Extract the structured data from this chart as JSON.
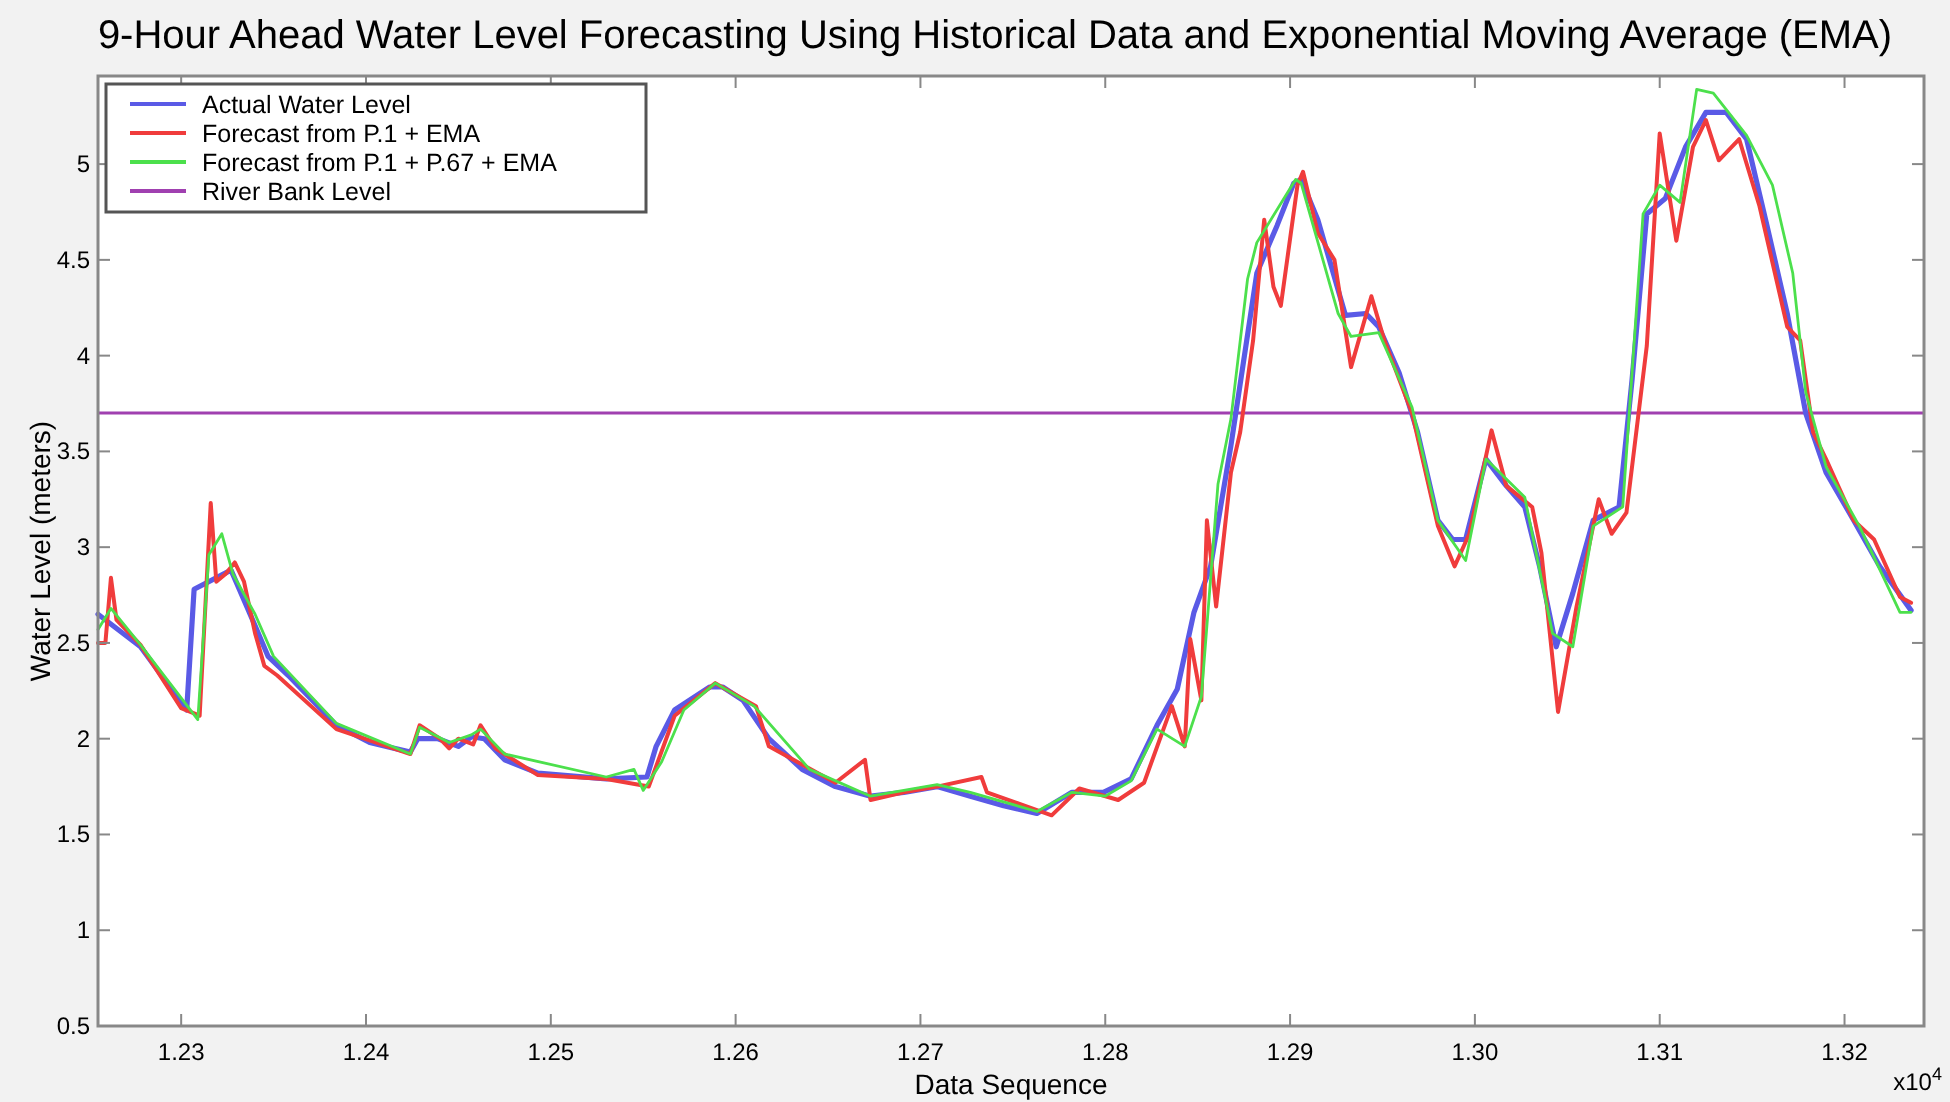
{
  "chart_data": {
    "type": "line",
    "title": "9-Hour Ahead Water Level Forecasting Using Historical Data and Exponential Moving Average (EMA)",
    "xlabel": "Data Sequence",
    "ylabel": "Water Level (meters)",
    "annotations": [
      "x10$^{4}$"
    ],
    "xlim": [
      1.2255,
      1.3243
    ],
    "ylim": [
      0.5,
      5.46
    ],
    "xticks": [
      1.23,
      1.24,
      1.25,
      1.26,
      1.27,
      1.28,
      1.29,
      {
        "value": 1.3,
        "label": "1.30"
      },
      1.31,
      1.32
    ],
    "yticks": [
      0.5,
      1,
      1.5,
      2,
      2.5,
      3,
      3.5,
      4,
      4.5,
      5
    ],
    "grid": false,
    "legend": "top left",
    "line_style": "solid",
    "marker": "none",
    "ref_lines": [
      {
        "axis": "y",
        "value": 3.7,
        "label": "River Bank Level",
        "color": "#a040b0"
      }
    ],
    "series": [
      {
        "name": "Actual Water Level",
        "color": "#5a5ae6",
        "x": [
          1.2255,
          1.2278,
          1.2303,
          1.2307,
          1.2327,
          1.234,
          1.2347,
          1.2358,
          1.2384,
          1.2402,
          1.2424,
          1.2428,
          1.2439,
          1.245,
          1.2457,
          1.2464,
          1.2475,
          1.2493,
          1.253,
          1.2552,
          1.2557,
          1.2567,
          1.2586,
          1.2593,
          1.2604,
          1.2618,
          1.2636,
          1.2654,
          1.2673,
          1.2691,
          1.2709,
          1.2727,
          1.2745,
          1.2763,
          1.2782,
          1.2799,
          1.2814,
          1.2828,
          1.2839,
          1.2848,
          1.2857,
          1.2868,
          1.2875,
          1.2882,
          1.2893,
          1.2902,
          1.2906,
          1.2915,
          1.293,
          1.2941,
          1.2948,
          1.2959,
          1.2969,
          1.298,
          1.2988,
          1.2995,
          1.3006,
          1.3017,
          1.3027,
          1.3035,
          1.3044,
          1.3053,
          1.3064,
          1.3078,
          1.3085,
          1.3093,
          1.3103,
          1.3114,
          1.3125,
          1.3136,
          1.3147,
          1.3158,
          1.3169,
          1.3179,
          1.319,
          1.3205,
          1.3219,
          1.3236
        ],
        "values": [
          2.65,
          2.48,
          2.15,
          2.78,
          2.88,
          2.59,
          2.43,
          2.33,
          2.07,
          1.98,
          1.93,
          2.0,
          2.0,
          1.96,
          2.01,
          2.0,
          1.89,
          1.82,
          1.79,
          1.8,
          1.96,
          2.15,
          2.27,
          2.27,
          2.2,
          2.0,
          1.84,
          1.75,
          1.7,
          1.72,
          1.75,
          1.7,
          1.65,
          1.61,
          1.72,
          1.72,
          1.79,
          2.07,
          2.26,
          2.66,
          2.9,
          3.53,
          3.98,
          4.43,
          4.68,
          4.9,
          4.92,
          4.71,
          4.21,
          4.22,
          4.15,
          3.91,
          3.6,
          3.14,
          3.04,
          3.04,
          3.46,
          3.32,
          3.21,
          2.9,
          2.48,
          2.76,
          3.14,
          3.21,
          3.87,
          4.74,
          4.82,
          5.09,
          5.27,
          5.27,
          5.13,
          4.68,
          4.22,
          3.7,
          3.39,
          3.14,
          2.9,
          2.67
        ]
      },
      {
        "name": "Forecast from P.1 + EMA",
        "color": "#f03c3c",
        "x": [
          1.2255,
          1.2259,
          1.2262,
          1.2265,
          1.2278,
          1.23,
          1.231,
          1.2316,
          1.2319,
          1.2324,
          1.2329,
          1.2334,
          1.234,
          1.2345,
          1.2352,
          1.2384,
          1.2424,
          1.2429,
          1.244,
          1.2445,
          1.245,
          1.2458,
          1.2462,
          1.247,
          1.2493,
          1.253,
          1.2553,
          1.2567,
          1.2589,
          1.2611,
          1.2618,
          1.2654,
          1.267,
          1.2673,
          1.2691,
          1.2709,
          1.2733,
          1.2736,
          1.2771,
          1.2786,
          1.2807,
          1.2821,
          1.2836,
          1.2843,
          1.2846,
          1.2852,
          1.2855,
          1.286,
          1.2868,
          1.2873,
          1.288,
          1.2886,
          1.2891,
          1.2895,
          1.2904,
          1.2907,
          1.2915,
          1.2924,
          1.2933,
          1.2944,
          1.2951,
          1.2966,
          1.298,
          1.2989,
          1.2997,
          1.3009,
          1.3017,
          1.3031,
          1.3036,
          1.3045,
          1.3055,
          1.3067,
          1.3074,
          1.3082,
          1.3093,
          1.31,
          1.3109,
          1.3118,
          1.3125,
          1.3132,
          1.3143,
          1.3154,
          1.3169,
          1.3176,
          1.3183,
          1.319,
          1.3205,
          1.3216,
          1.323,
          1.3236
        ],
        "values": [
          2.5,
          2.5,
          2.84,
          2.62,
          2.49,
          2.16,
          2.12,
          3.23,
          2.82,
          2.86,
          2.92,
          2.82,
          2.55,
          2.38,
          2.33,
          2.05,
          1.92,
          2.07,
          2.0,
          1.95,
          2.0,
          1.97,
          2.07,
          1.95,
          1.81,
          1.79,
          1.75,
          2.12,
          2.29,
          2.17,
          1.96,
          1.77,
          1.89,
          1.68,
          1.72,
          1.75,
          1.8,
          1.72,
          1.6,
          1.74,
          1.68,
          1.77,
          2.17,
          1.96,
          2.52,
          2.2,
          3.14,
          2.69,
          3.39,
          3.6,
          4.08,
          4.71,
          4.36,
          4.26,
          4.89,
          4.96,
          4.64,
          4.5,
          3.94,
          4.31,
          4.08,
          3.7,
          3.11,
          2.9,
          3.07,
          3.61,
          3.32,
          3.21,
          2.97,
          2.14,
          2.69,
          3.25,
          3.07,
          3.18,
          4.05,
          5.16,
          4.6,
          5.09,
          5.23,
          5.02,
          5.13,
          4.78,
          4.15,
          4.08,
          3.6,
          3.46,
          3.14,
          3.04,
          2.74,
          2.71
        ]
      },
      {
        "name": "Forecast from P.1 + P.67 + EMA",
        "color": "#4ce04c",
        "x": [
          1.2255,
          1.2262,
          1.2278,
          1.2309,
          1.2315,
          1.2322,
          1.2328,
          1.234,
          1.235,
          1.2384,
          1.2424,
          1.2429,
          1.2445,
          1.2457,
          1.2462,
          1.2475,
          1.253,
          1.2545,
          1.255,
          1.256,
          1.2572,
          1.2589,
          1.261,
          1.264,
          1.2673,
          1.2709,
          1.2727,
          1.2763,
          1.2782,
          1.28,
          1.2814,
          1.2828,
          1.2843,
          1.2852,
          1.2861,
          1.2868,
          1.2877,
          1.2882,
          1.2903,
          1.2906,
          1.2926,
          1.2933,
          1.2948,
          1.2966,
          1.298,
          1.2995,
          1.3006,
          1.3027,
          1.3042,
          1.3053,
          1.3064,
          1.308,
          1.3091,
          1.31,
          1.3111,
          1.312,
          1.3129,
          1.3147,
          1.3161,
          1.3172,
          1.3179,
          1.319,
          1.3208,
          1.323,
          1.3236
        ],
        "values": [
          2.57,
          2.68,
          2.49,
          2.1,
          2.96,
          3.07,
          2.86,
          2.65,
          2.43,
          2.08,
          1.92,
          2.06,
          1.98,
          2.02,
          2.05,
          1.92,
          1.8,
          1.84,
          1.73,
          1.88,
          2.15,
          2.29,
          2.17,
          1.84,
          1.7,
          1.76,
          1.72,
          1.62,
          1.72,
          1.7,
          1.78,
          2.05,
          1.96,
          2.22,
          3.33,
          3.67,
          4.4,
          4.59,
          4.92,
          4.9,
          4.22,
          4.1,
          4.12,
          3.73,
          3.14,
          2.93,
          3.46,
          3.26,
          2.55,
          2.48,
          3.11,
          3.21,
          4.74,
          4.89,
          4.8,
          5.39,
          5.37,
          5.15,
          4.89,
          4.43,
          3.81,
          3.42,
          3.11,
          2.66,
          2.66
        ]
      }
    ]
  }
}
